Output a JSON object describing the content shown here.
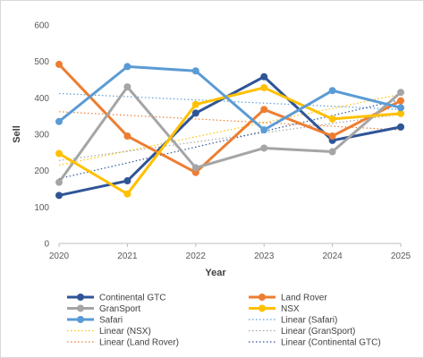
{
  "chart_data": {
    "type": "line",
    "title": "",
    "xlabel": "Year",
    "ylabel": "Sell",
    "x": [
      "2020",
      "2021",
      "2022",
      "2023",
      "2024",
      "2025"
    ],
    "ylim": [
      0,
      600
    ],
    "yticks": [
      "0",
      "100",
      "200",
      "300",
      "400",
      "500",
      "600"
    ],
    "grid": "off",
    "legend_placement": "bottom",
    "series": [
      {
        "name": "Continental GTC",
        "color": "#2f5597",
        "values": [
          132,
          172,
          358,
          458,
          283,
          320
        ]
      },
      {
        "name": "Land Rover",
        "color": "#ed7d31",
        "values": [
          492,
          295,
          195,
          368,
          295,
          392
        ]
      },
      {
        "name": "GranSport",
        "color": "#a5a5a5",
        "values": [
          168,
          430,
          208,
          262,
          252,
          415
        ]
      },
      {
        "name": "NSX",
        "color": "#ffc000",
        "values": [
          247,
          136,
          382,
          428,
          342,
          357
        ]
      },
      {
        "name": "Safari",
        "color": "#5b9bd5",
        "values": [
          335,
          486,
          474,
          312,
          420,
          373
        ]
      }
    ],
    "trendlines": [
      {
        "name": "Linear (Safari)",
        "color": "#5b9bd5",
        "from": 412,
        "to": 368
      },
      {
        "name": "Linear (NSX)",
        "color": "#ffc000",
        "from": 215,
        "to": 410
      },
      {
        "name": "Linear (GranSport)",
        "color": "#a5a5a5",
        "from": 228,
        "to": 355
      },
      {
        "name": "Linear (Land Rover)",
        "color": "#ed7d31",
        "from": 362,
        "to": 312
      },
      {
        "name": "Linear (Continental GTC)",
        "color": "#2f5597",
        "from": 178,
        "to": 395
      }
    ]
  }
}
